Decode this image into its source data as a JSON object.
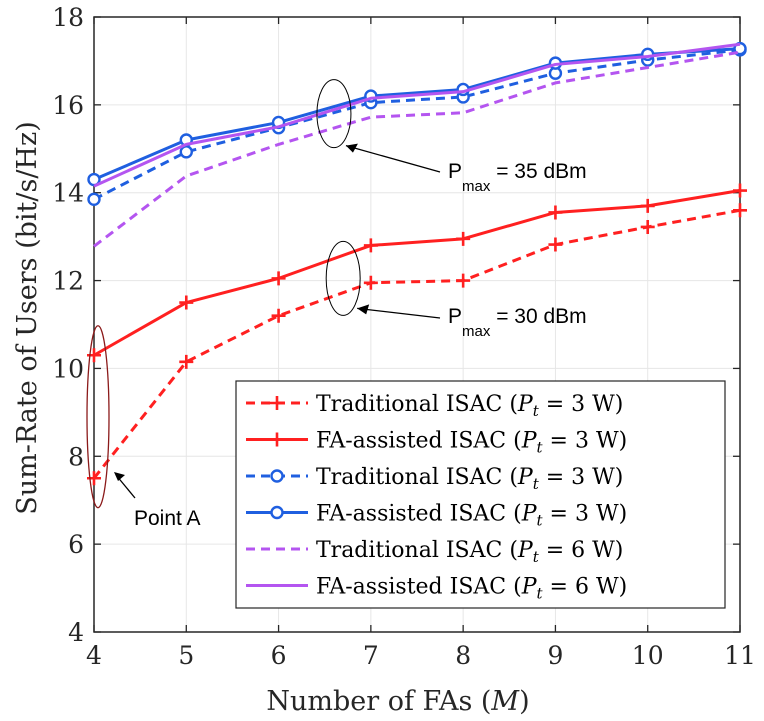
{
  "chart_data": {
    "type": "line",
    "xlabel": "Number of FAs (M)",
    "xlabel_parts": {
      "text": "Number of FAs (",
      "var": "M",
      "close": ")"
    },
    "ylabel": "Sum-Rate of Users (bit/s/Hz)",
    "x": [
      4,
      5,
      6,
      7,
      8,
      9,
      10,
      11
    ],
    "xlim": [
      4,
      11
    ],
    "ylim": [
      4,
      18
    ],
    "xticks": [
      "4",
      "5",
      "6",
      "7",
      "8",
      "9",
      "10",
      "11"
    ],
    "yticks": [
      "4",
      "6",
      "8",
      "10",
      "12",
      "14",
      "16",
      "18"
    ],
    "grid": true,
    "legend_position": "bottom-right",
    "series": [
      {
        "name": "Traditional ISAC (Pt = 3 W)",
        "label_prefix": "Traditional ISAC (",
        "pt": "3 W",
        "color": "#ff2020",
        "dash": "9,6",
        "marker": "plus",
        "values": [
          7.5,
          10.15,
          11.2,
          11.95,
          12.0,
          12.82,
          13.22,
          13.6
        ]
      },
      {
        "name": "FA-assisted ISAC (Pt = 3 W)",
        "label_prefix": "FA-assisted ISAC (",
        "pt": "3 W",
        "color": "#ff2020",
        "dash": "",
        "marker": "plus",
        "values": [
          10.3,
          11.5,
          12.05,
          12.8,
          12.95,
          13.55,
          13.7,
          14.05
        ]
      },
      {
        "name": "Traditional ISAC (Pt = 3 W)",
        "label_prefix": "Traditional ISAC (",
        "pt": "3 W",
        "color": "#1f5fe0",
        "dash": "9,6",
        "marker": "circle",
        "values": [
          13.85,
          14.93,
          15.48,
          16.05,
          16.18,
          16.72,
          17.02,
          17.25
        ]
      },
      {
        "name": "FA-assisted ISAC (Pt = 3 W)",
        "label_prefix": "FA-assisted ISAC (",
        "pt": "3 W",
        "color": "#1f5fe0",
        "dash": "",
        "marker": "circle",
        "values": [
          14.3,
          15.2,
          15.6,
          16.2,
          16.35,
          16.95,
          17.15,
          17.28
        ]
      },
      {
        "name": "Traditional ISAC (Pt = 6 W)",
        "label_prefix": "Traditional ISAC (",
        "pt": "6 W",
        "color": "#b455f0",
        "dash": "9,6",
        "marker": "none",
        "values": [
          12.78,
          14.38,
          15.1,
          15.72,
          15.82,
          16.5,
          16.85,
          17.2
        ]
      },
      {
        "name": "FA-assisted ISAC (Pt = 6 W)",
        "label_prefix": "FA-assisted ISAC (",
        "pt": "6 W",
        "color": "#b455f0",
        "dash": "",
        "marker": "none",
        "values": [
          14.15,
          15.1,
          15.5,
          16.15,
          16.3,
          16.92,
          17.1,
          17.38
        ]
      }
    ],
    "annotations": [
      {
        "text": "P",
        "sub": "max",
        "rest": " = 35 dBm"
      },
      {
        "text": "P",
        "sub": "max",
        "rest": " = 30 dBm"
      },
      {
        "text": "Point A"
      }
    ]
  }
}
